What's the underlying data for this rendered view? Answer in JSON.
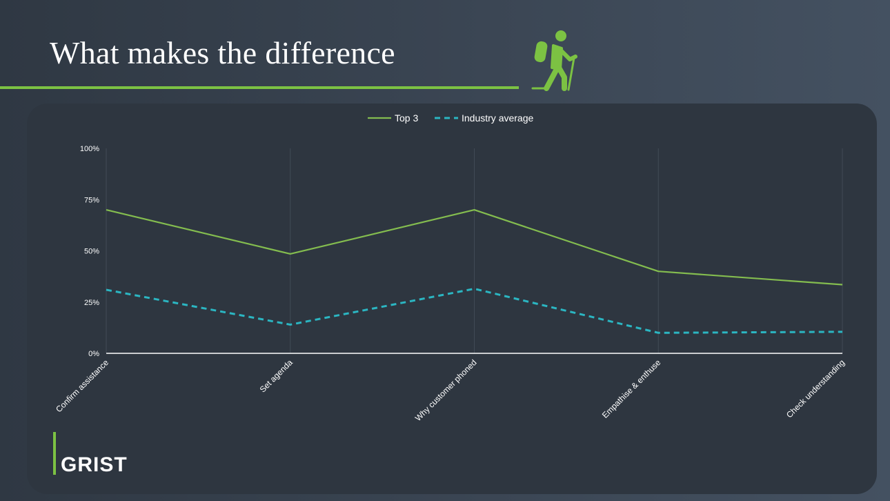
{
  "slide": {
    "title": "What makes the difference",
    "brand": "GRIST"
  },
  "icons": {
    "hiker": "hiker-icon"
  },
  "colors": {
    "accent": "#7cc243",
    "top3": "#84bd4f",
    "industry": "#2bb6c2",
    "axis": "#ffffff",
    "grid": "#414b56"
  },
  "chart_data": {
    "type": "line",
    "categories": [
      "Confirm assistance",
      "Set agenda",
      "Why customer phoned",
      "Empathise & enthuse",
      "Check understanding"
    ],
    "series": [
      {
        "name": "Top 3",
        "values": [
          70,
          48.5,
          70,
          40,
          33.5
        ],
        "style": "solid"
      },
      {
        "name": "Industry average",
        "values": [
          31,
          14,
          31.5,
          10,
          10.5
        ],
        "style": "dashed"
      }
    ],
    "ylim": [
      0,
      100
    ],
    "yticks": [
      "0%",
      "25%",
      "50%",
      "75%",
      "100%"
    ],
    "ytick_values": [
      0,
      25,
      50,
      75,
      100
    ],
    "legend": "top-center",
    "grid": "vertical"
  }
}
